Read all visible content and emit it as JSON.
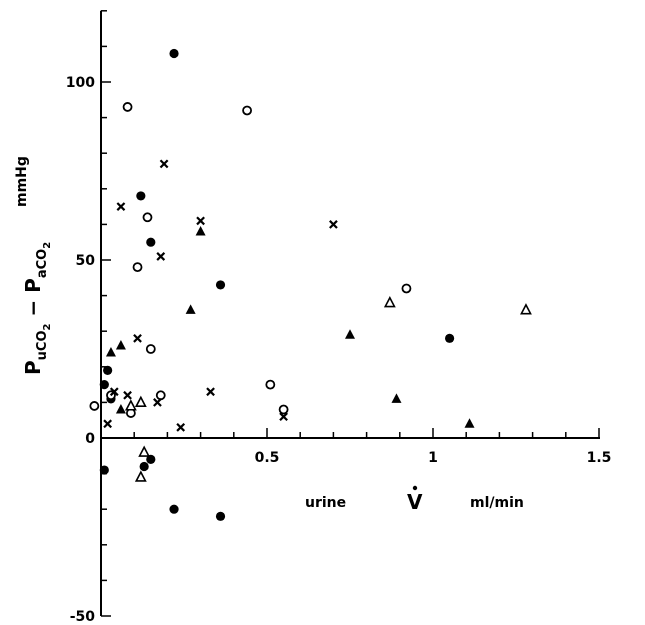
{
  "chart_data": {
    "type": "scatter",
    "title": "",
    "xlabel": {
      "prefix": "urine",
      "symbol": "V",
      "unit": "ml/min"
    },
    "ylabel": {
      "text": "P",
      "sub1": "uCO",
      "sub1b": "2",
      "minus": " − P",
      "sub2": "aCO",
      "sub2b": "2",
      "unit": "mmHg"
    },
    "xlim": [
      0,
      1.5
    ],
    "ylim": [
      -50,
      120
    ],
    "x_ticks": [
      {
        "value": 0.5,
        "label": "0.5"
      },
      {
        "value": 1,
        "label": "1"
      },
      {
        "value": 1.5,
        "label": "1.5"
      }
    ],
    "y_ticks": [
      {
        "value": 0,
        "label": "0"
      },
      {
        "value": 50,
        "label": "50"
      },
      {
        "value": 100,
        "label": "100"
      },
      {
        "value": -50,
        "label": "-50"
      }
    ],
    "grid": false,
    "legend": "none",
    "series": [
      {
        "marker": "filled-circle",
        "points": [
          [
            0.22,
            108
          ],
          [
            0.12,
            68
          ],
          [
            0.15,
            55
          ],
          [
            0.36,
            43
          ],
          [
            0.01,
            15
          ],
          [
            0.02,
            19
          ],
          [
            0.03,
            11
          ],
          [
            1.05,
            28
          ],
          [
            0.01,
            -9
          ],
          [
            0.13,
            -8
          ],
          [
            0.15,
            -6
          ],
          [
            0.22,
            -20
          ],
          [
            0.36,
            -22
          ]
        ]
      },
      {
        "marker": "open-circle",
        "points": [
          [
            0.08,
            93
          ],
          [
            0.44,
            92
          ],
          [
            0.14,
            62
          ],
          [
            0.11,
            48
          ],
          [
            0.92,
            42
          ],
          [
            0.15,
            25
          ],
          [
            0.51,
            15
          ],
          [
            0.18,
            12
          ],
          [
            0.55,
            8
          ],
          [
            0.09,
            7
          ],
          [
            -0.02,
            9
          ],
          [
            0.03,
            12
          ]
        ]
      },
      {
        "marker": "cross",
        "points": [
          [
            0.19,
            77
          ],
          [
            0.06,
            65
          ],
          [
            0.3,
            61
          ],
          [
            0.7,
            60
          ],
          [
            0.18,
            51
          ],
          [
            0.11,
            28
          ],
          [
            0.04,
            13
          ],
          [
            0.08,
            12
          ],
          [
            0.33,
            13
          ],
          [
            0.17,
            10
          ],
          [
            0.55,
            6
          ],
          [
            0.02,
            4
          ],
          [
            0.24,
            3
          ]
        ]
      },
      {
        "marker": "filled-triangle",
        "points": [
          [
            0.3,
            58
          ],
          [
            0.27,
            36
          ],
          [
            0.75,
            29
          ],
          [
            0.06,
            26
          ],
          [
            0.03,
            24
          ],
          [
            0.06,
            8
          ],
          [
            0.89,
            11
          ],
          [
            1.11,
            4
          ]
        ]
      },
      {
        "marker": "open-triangle",
        "points": [
          [
            0.87,
            38
          ],
          [
            1.28,
            36
          ],
          [
            0.12,
            10
          ],
          [
            0.09,
            9
          ],
          [
            0.13,
            -4
          ],
          [
            0.12,
            -11
          ]
        ]
      }
    ]
  }
}
